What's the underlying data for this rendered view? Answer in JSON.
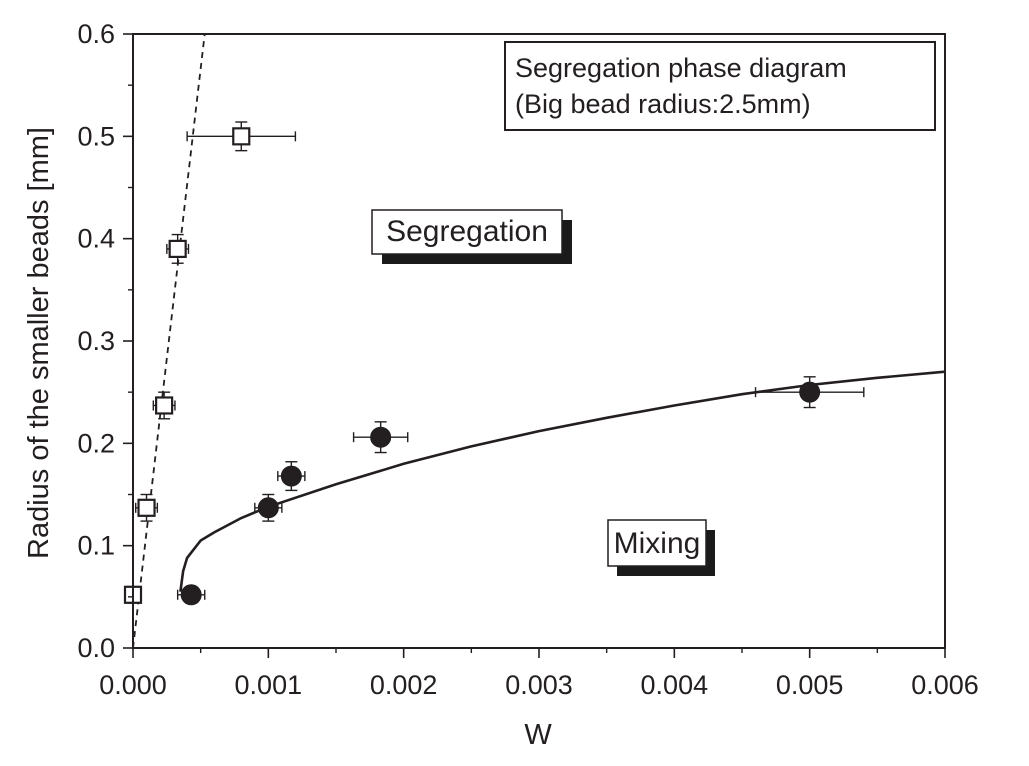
{
  "chart_data": {
    "type": "scatter",
    "title": "",
    "xlabel": "W",
    "ylabel": "Radius of the smaller beads [mm]",
    "xlim": [
      0.0,
      0.006
    ],
    "ylim": [
      0.0,
      0.6
    ],
    "grid": false,
    "x_ticks": [
      "0.000",
      "0.001",
      "0.002",
      "0.003",
      "0.004",
      "0.005",
      "0.006"
    ],
    "y_ticks": [
      "0.0",
      "0.1",
      "0.2",
      "0.3",
      "0.4",
      "0.5",
      "0.6"
    ],
    "annotation_box": {
      "line1": "Segregation phase diagram",
      "line2": "(Big bead radius:2.5mm)",
      "placement": "top-right"
    },
    "region_labels": {
      "upper": "Segregation",
      "lower": "Mixing"
    },
    "series": [
      {
        "marker": "open-square",
        "points": [
          {
            "x": 0.0,
            "y": 0.052,
            "xerr": 2e-05,
            "yerr": 0.008
          },
          {
            "x": 0.0001,
            "y": 0.137,
            "xerr": 8e-05,
            "yerr": 0.013
          },
          {
            "x": 0.00023,
            "y": 0.237,
            "xerr": 8e-05,
            "yerr": 0.013
          },
          {
            "x": 0.00033,
            "y": 0.39,
            "xerr": 8e-05,
            "yerr": 0.014
          },
          {
            "x": 0.0008,
            "y": 0.5,
            "xerr": 0.0004,
            "yerr": 0.014
          }
        ]
      },
      {
        "marker": "filled-circle",
        "points": [
          {
            "x": 0.00043,
            "y": 0.052,
            "xerr": 0.0001,
            "yerr": 0.008
          },
          {
            "x": 0.001,
            "y": 0.137,
            "xerr": 0.0001,
            "yerr": 0.013
          },
          {
            "x": 0.00117,
            "y": 0.168,
            "xerr": 0.0001,
            "yerr": 0.014
          },
          {
            "x": 0.00183,
            "y": 0.206,
            "xerr": 0.0002,
            "yerr": 0.015
          },
          {
            "x": 0.005,
            "y": 0.25,
            "xerr": 0.0004,
            "yerr": 0.015
          }
        ]
      }
    ],
    "fit_lines": [
      {
        "style": "dashed",
        "points": [
          [
            0.0,
            0.0
          ],
          [
            0.00053,
            0.6
          ]
        ]
      },
      {
        "style": "solid",
        "points": [
          [
            0.00035,
            0.055
          ],
          [
            0.00037,
            0.075
          ],
          [
            0.0004,
            0.088
          ],
          [
            0.0005,
            0.105
          ],
          [
            0.0006,
            0.113
          ],
          [
            0.0008,
            0.127
          ],
          [
            0.001,
            0.138
          ],
          [
            0.0015,
            0.16
          ],
          [
            0.002,
            0.18
          ],
          [
            0.0025,
            0.197
          ],
          [
            0.003,
            0.212
          ],
          [
            0.0035,
            0.225
          ],
          [
            0.004,
            0.237
          ],
          [
            0.0045,
            0.248
          ],
          [
            0.005,
            0.257
          ],
          [
            0.0055,
            0.264
          ],
          [
            0.006,
            0.27
          ]
        ]
      }
    ]
  }
}
